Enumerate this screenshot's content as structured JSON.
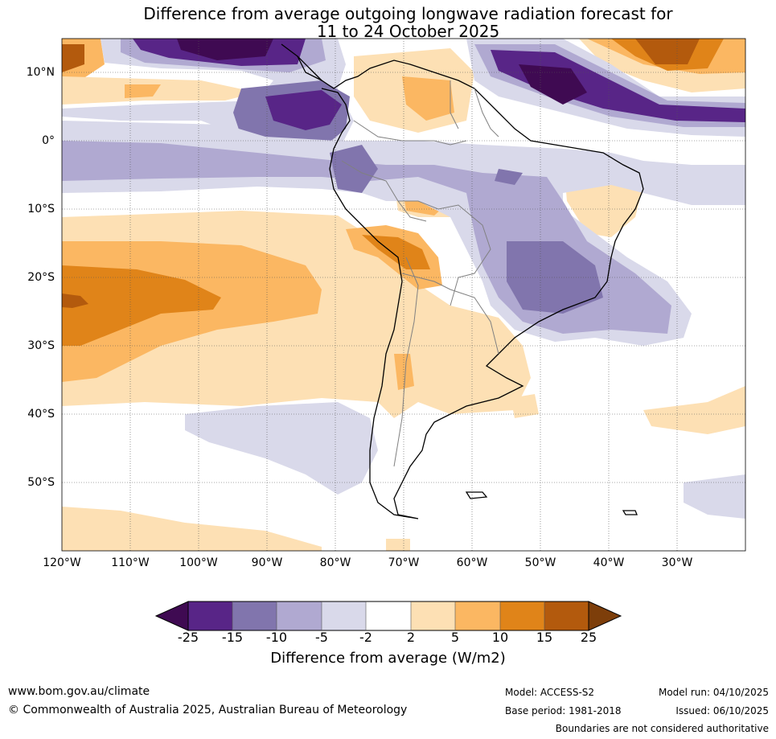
{
  "title": {
    "line1": "Difference from average outgoing longwave radiation forecast for",
    "line2": "11 to 24 October 2025"
  },
  "lat_labels": [
    "10°N",
    "0°",
    "10°S",
    "20°S",
    "30°S",
    "40°S",
    "50°S"
  ],
  "lon_labels": [
    "120°W",
    "110°W",
    "100°W",
    "90°W",
    "80°W",
    "70°W",
    "60°W",
    "50°W",
    "40°W",
    "30°W"
  ],
  "colorbar": {
    "ticks": [
      "-25",
      "-15",
      "-10",
      "-5",
      "-2",
      "2",
      "5",
      "10",
      "15",
      "25"
    ],
    "colors": [
      "#3f0a52",
      "#582587",
      "#8175ad",
      "#b0a9d1",
      "#d9d9ea",
      "#ffffff",
      "#fde0b4",
      "#fbb762",
      "#e08419",
      "#b35a0d",
      "#7d3e0a"
    ],
    "label": "Difference from average (W/m2)"
  },
  "footer": {
    "website": "www.bom.gov.au/climate",
    "copyright": "© Commonwealth of Australia 2025, Australian Bureau of Meteorology",
    "model": "Model: ACCESS-S2",
    "base_period": "Base period: 1981-2018",
    "model_run": "Model run: 04/10/2025",
    "issued": "Issued: 06/10/2025",
    "disclaimer": "Boundaries are not considered authoritative"
  }
}
